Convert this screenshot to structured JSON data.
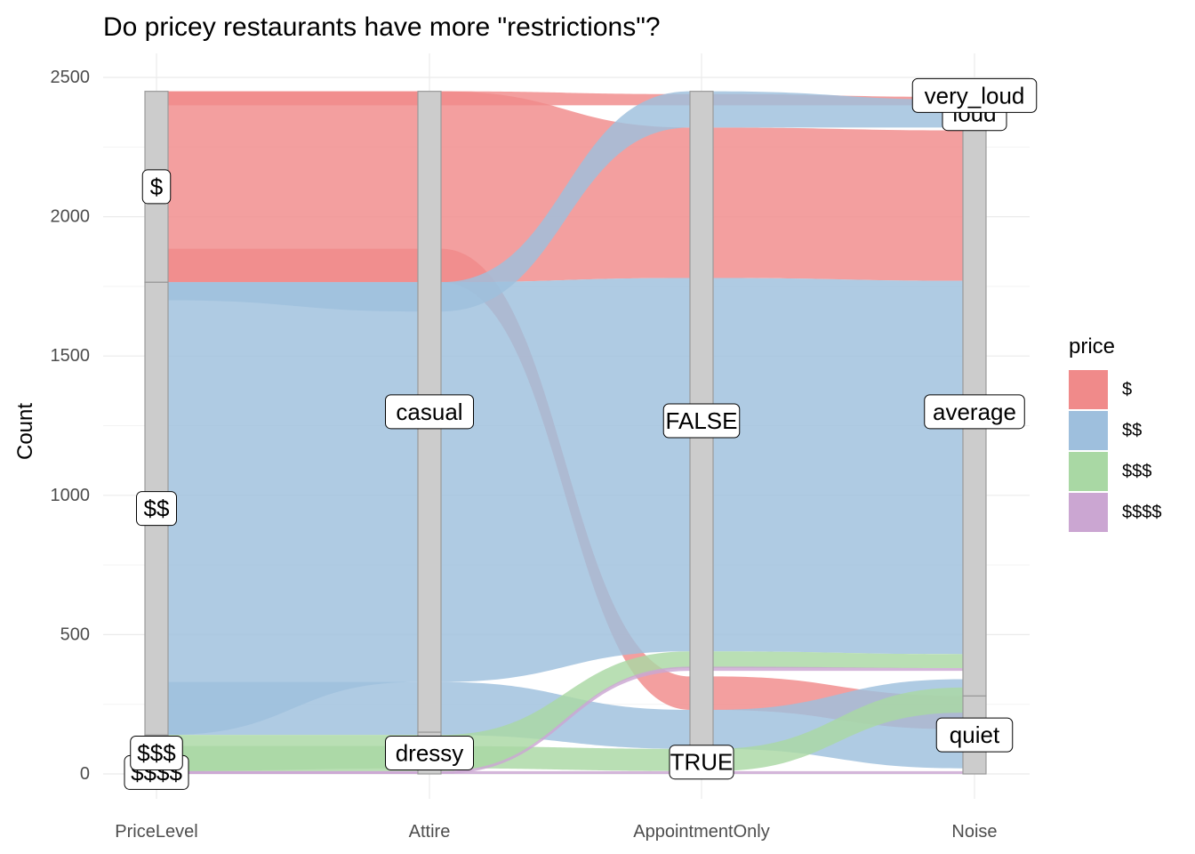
{
  "chart_data": {
    "type": "alluvial",
    "title": "Do pricey restaurants have more \"restrictions\"?",
    "xlabel": "",
    "ylabel": "Count",
    "ylim": [
      0,
      2500
    ],
    "y_ticks": [
      0,
      500,
      1000,
      1500,
      2000,
      2500
    ],
    "axes": [
      "PriceLevel",
      "Attire",
      "AppointmentOnly",
      "Noise"
    ],
    "legend": {
      "title": "price",
      "position": "right",
      "entries": [
        {
          "label": "$",
          "color": "#F08A8A"
        },
        {
          "label": "$$",
          "color": "#9EBFDD"
        },
        {
          "label": "$$$",
          "color": "#A9D8A4"
        },
        {
          "label": "$$$$",
          "color": "#CBA6D2"
        }
      ]
    },
    "strata": {
      "PriceLevel": [
        {
          "label": "$$$$",
          "count": 10
        },
        {
          "label": "$$$",
          "count": 130
        },
        {
          "label": "$$",
          "count": 1625
        },
        {
          "label": "$",
          "count": 685
        }
      ],
      "Attire": [
        {
          "label": "dressy",
          "count": 150
        },
        {
          "label": "casual",
          "count": 2300
        }
      ],
      "AppointmentOnly": [
        {
          "label": "TRUE",
          "count": 85
        },
        {
          "label": "FALSE",
          "count": 2365
        }
      ],
      "Noise": [
        {
          "label": "quiet",
          "count": 280
        },
        {
          "label": "average",
          "count": 2040
        },
        {
          "label": "loud",
          "count": 100
        },
        {
          "label": "very_loud",
          "count": 30
        }
      ]
    },
    "flows": [
      {
        "price": "$",
        "path": [
          {
            "axis": "PriceLevel",
            "y0": 1765,
            "y1": 2450
          },
          {
            "axis": "Attire",
            "y0": 1765,
            "y1": 2450
          },
          {
            "axis": "AppointmentOnly",
            "y0": 1780,
            "y1": 2320
          },
          {
            "axis": "Noise",
            "y0": 1770,
            "y1": 2310
          }
        ]
      },
      {
        "price": "$",
        "path": [
          {
            "axis": "PriceLevel",
            "y0": 1765,
            "y1": 1885
          },
          {
            "axis": "Attire",
            "y0": 1765,
            "y1": 1885
          },
          {
            "axis": "AppointmentOnly",
            "y0": 230,
            "y1": 350
          },
          {
            "axis": "Noise",
            "y0": 160,
            "y1": 280
          }
        ]
      },
      {
        "price": "$",
        "path": [
          {
            "axis": "PriceLevel",
            "y0": 2400,
            "y1": 2450
          },
          {
            "axis": "Attire",
            "y0": 2400,
            "y1": 2450
          },
          {
            "axis": "AppointmentOnly",
            "y0": 2400,
            "y1": 2440
          },
          {
            "axis": "Noise",
            "y0": 2400,
            "y1": 2430
          }
        ]
      },
      {
        "price": "$$",
        "path": [
          {
            "axis": "PriceLevel",
            "y0": 140,
            "y1": 1765
          },
          {
            "axis": "Attire",
            "y0": 330,
            "y1": 1765
          },
          {
            "axis": "AppointmentOnly",
            "y0": 440,
            "y1": 1780
          },
          {
            "axis": "Noise",
            "y0": 430,
            "y1": 1770
          }
        ]
      },
      {
        "price": "$$",
        "path": [
          {
            "axis": "PriceLevel",
            "y0": 140,
            "y1": 330
          },
          {
            "axis": "Attire",
            "y0": 140,
            "y1": 330
          },
          {
            "axis": "AppointmentOnly",
            "y0": 90,
            "y1": 230
          },
          {
            "axis": "Noise",
            "y0": 20,
            "y1": 340
          }
        ]
      },
      {
        "price": "$$",
        "path": [
          {
            "axis": "PriceLevel",
            "y0": 1700,
            "y1": 1765
          },
          {
            "axis": "Attire",
            "y0": 1660,
            "y1": 1765
          },
          {
            "axis": "AppointmentOnly",
            "y0": 2320,
            "y1": 2450
          },
          {
            "axis": "Noise",
            "y0": 2320,
            "y1": 2420
          }
        ]
      },
      {
        "price": "$$$",
        "path": [
          {
            "axis": "PriceLevel",
            "y0": 10,
            "y1": 140
          },
          {
            "axis": "Attire",
            "y0": 10,
            "y1": 140
          },
          {
            "axis": "AppointmentOnly",
            "y0": 380,
            "y1": 440
          },
          {
            "axis": "Noise",
            "y0": 380,
            "y1": 430
          }
        ]
      },
      {
        "price": "$$$",
        "path": [
          {
            "axis": "PriceLevel",
            "y0": 10,
            "y1": 100
          },
          {
            "axis": "Attire",
            "y0": 20,
            "y1": 100
          },
          {
            "axis": "AppointmentOnly",
            "y0": 10,
            "y1": 90
          },
          {
            "axis": "Noise",
            "y0": 220,
            "y1": 310
          }
        ]
      },
      {
        "price": "$$$$",
        "path": [
          {
            "axis": "PriceLevel",
            "y0": 0,
            "y1": 10
          },
          {
            "axis": "Attire",
            "y0": 0,
            "y1": 10
          },
          {
            "axis": "AppointmentOnly",
            "y0": 370,
            "y1": 385
          },
          {
            "axis": "Noise",
            "y0": 370,
            "y1": 380
          }
        ]
      },
      {
        "price": "$$$$",
        "path": [
          {
            "axis": "PriceLevel",
            "y0": 0,
            "y1": 10
          },
          {
            "axis": "Attire",
            "y0": 0,
            "y1": 10
          },
          {
            "axis": "AppointmentOnly",
            "y0": 0,
            "y1": 10
          },
          {
            "axis": "Noise",
            "y0": 0,
            "y1": 10
          }
        ]
      }
    ]
  }
}
